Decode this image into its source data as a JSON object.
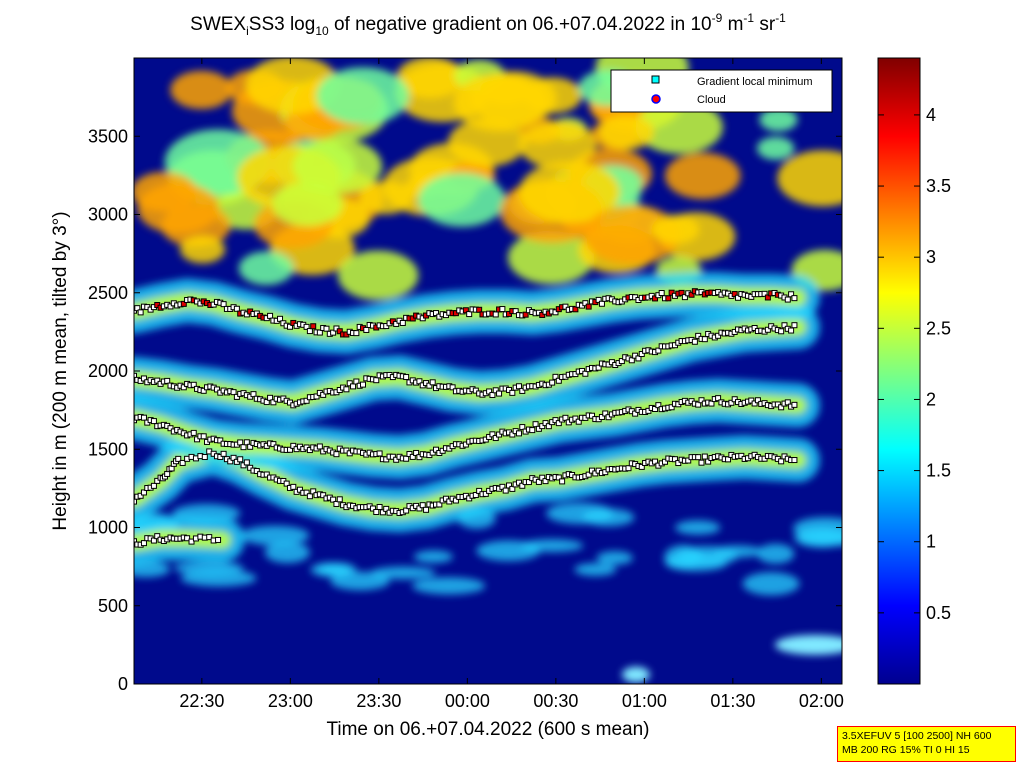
{
  "chart_data": {
    "type": "heatmap",
    "title": {
      "prefix": "SWEX",
      "subscript_i": "i",
      "mid": "SS3 log",
      "subscript_10": "10",
      "rest": " of negative gradient on 06.+07.04.2022 in 10",
      "sup1": "-9",
      "m": " m",
      "sup2": "-1",
      "sr": " sr",
      "sup3": "-1"
    },
    "xlabel": "Time on 06.+07.04.2022 (600 s mean)",
    "ylabel": "Height in m (200 m mean, tilted by 3°)",
    "x_range": [
      "22:07",
      "02:07"
    ],
    "x_ticks": [
      "22:30",
      "23:00",
      "23:30",
      "00:00",
      "00:30",
      "01:00",
      "01:30",
      "02:00"
    ],
    "y_range": [
      0,
      4000
    ],
    "y_ticks": [
      "0",
      "500",
      "1000",
      "1500",
      "2000",
      "2500",
      "3000",
      "3500"
    ],
    "colorbar": {
      "range": [
        0,
        4.4
      ],
      "ticks": [
        "0.5",
        "1",
        "1.5",
        "2",
        "2.5",
        "3",
        "3.5",
        "4"
      ],
      "colormap": "jet"
    },
    "legend": {
      "position": "top-right",
      "entries": [
        {
          "label": "Gradient local minimum",
          "marker": "square",
          "color": "#00ffff"
        },
        {
          "label": "Cloud",
          "marker": "circle",
          "color": "#ff0000"
        }
      ]
    },
    "layers": [
      {
        "name": "layer-low",
        "points": [
          [
            0,
            900
          ],
          [
            0.3,
            930
          ],
          [
            0.6,
            930
          ],
          [
            1.0,
            920
          ]
        ]
      },
      {
        "name": "layer-1",
        "points": [
          [
            0,
            1180
          ],
          [
            0.3,
            1300
          ],
          [
            0.5,
            1420
          ],
          [
            0.9,
            1480
          ],
          [
            1.2,
            1420
          ],
          [
            1.5,
            1330
          ],
          [
            1.8,
            1250
          ],
          [
            2.1,
            1200
          ],
          [
            2.4,
            1150
          ],
          [
            2.7,
            1120
          ],
          [
            3.0,
            1110
          ],
          [
            3.3,
            1130
          ],
          [
            3.6,
            1180
          ],
          [
            3.9,
            1220
          ],
          [
            4.2,
            1250
          ],
          [
            4.5,
            1300
          ],
          [
            4.8,
            1310
          ],
          [
            5.1,
            1340
          ],
          [
            5.4,
            1370
          ],
          [
            5.7,
            1400
          ],
          [
            6.0,
            1420
          ],
          [
            6.3,
            1430
          ],
          [
            6.6,
            1440
          ],
          [
            6.9,
            1450
          ],
          [
            7.2,
            1440
          ],
          [
            7.5,
            1430
          ]
        ]
      },
      {
        "name": "layer-2",
        "points": [
          [
            0,
            1700
          ],
          [
            0.3,
            1660
          ],
          [
            0.6,
            1600
          ],
          [
            0.9,
            1550
          ],
          [
            1.2,
            1530
          ],
          [
            1.5,
            1520
          ],
          [
            1.8,
            1510
          ],
          [
            2.1,
            1500
          ],
          [
            2.4,
            1480
          ],
          [
            2.7,
            1460
          ],
          [
            3.0,
            1450
          ],
          [
            3.3,
            1470
          ],
          [
            3.6,
            1520
          ],
          [
            3.9,
            1560
          ],
          [
            4.2,
            1600
          ],
          [
            4.5,
            1640
          ],
          [
            4.8,
            1680
          ],
          [
            5.1,
            1700
          ],
          [
            5.4,
            1720
          ],
          [
            5.7,
            1750
          ],
          [
            6.0,
            1780
          ],
          [
            6.3,
            1800
          ],
          [
            6.6,
            1810
          ],
          [
            6.9,
            1800
          ],
          [
            7.2,
            1790
          ],
          [
            7.5,
            1780
          ]
        ]
      },
      {
        "name": "layer-3",
        "points": [
          [
            0,
            1950
          ],
          [
            0.3,
            1930
          ],
          [
            0.6,
            1900
          ],
          [
            0.9,
            1880
          ],
          [
            1.2,
            1850
          ],
          [
            1.5,
            1820
          ],
          [
            1.8,
            1800
          ],
          [
            2.1,
            1850
          ],
          [
            2.4,
            1900
          ],
          [
            2.7,
            1950
          ],
          [
            3.0,
            1960
          ],
          [
            3.3,
            1920
          ],
          [
            3.6,
            1880
          ],
          [
            3.9,
            1860
          ],
          [
            4.2,
            1870
          ],
          [
            4.5,
            1900
          ],
          [
            4.8,
            1950
          ],
          [
            5.1,
            2000
          ],
          [
            5.4,
            2050
          ],
          [
            5.7,
            2100
          ],
          [
            6.0,
            2150
          ],
          [
            6.3,
            2200
          ],
          [
            6.6,
            2230
          ],
          [
            6.9,
            2260
          ],
          [
            7.2,
            2270
          ],
          [
            7.5,
            2280
          ]
        ]
      },
      {
        "name": "layer-4",
        "points": [
          [
            0,
            2380
          ],
          [
            0.3,
            2420
          ],
          [
            0.6,
            2450
          ],
          [
            0.9,
            2430
          ],
          [
            1.2,
            2380
          ],
          [
            1.5,
            2340
          ],
          [
            1.8,
            2290
          ],
          [
            2.1,
            2260
          ],
          [
            2.4,
            2250
          ],
          [
            2.7,
            2280
          ],
          [
            3.0,
            2320
          ],
          [
            3.3,
            2350
          ],
          [
            3.6,
            2370
          ],
          [
            3.9,
            2380
          ],
          [
            4.2,
            2380
          ],
          [
            4.5,
            2370
          ],
          [
            4.8,
            2390
          ],
          [
            5.1,
            2420
          ],
          [
            5.4,
            2450
          ],
          [
            5.7,
            2470
          ],
          [
            6.0,
            2480
          ],
          [
            6.3,
            2490
          ],
          [
            6.6,
            2490
          ],
          [
            6.9,
            2480
          ],
          [
            7.2,
            2480
          ],
          [
            7.5,
            2470
          ]
        ]
      }
    ]
  },
  "infobox": {
    "line1": "3.5XEFUV 5 [100 2500] NH 600",
    "line2": "MB 200 RG 15% TI 0 HI 15"
  }
}
